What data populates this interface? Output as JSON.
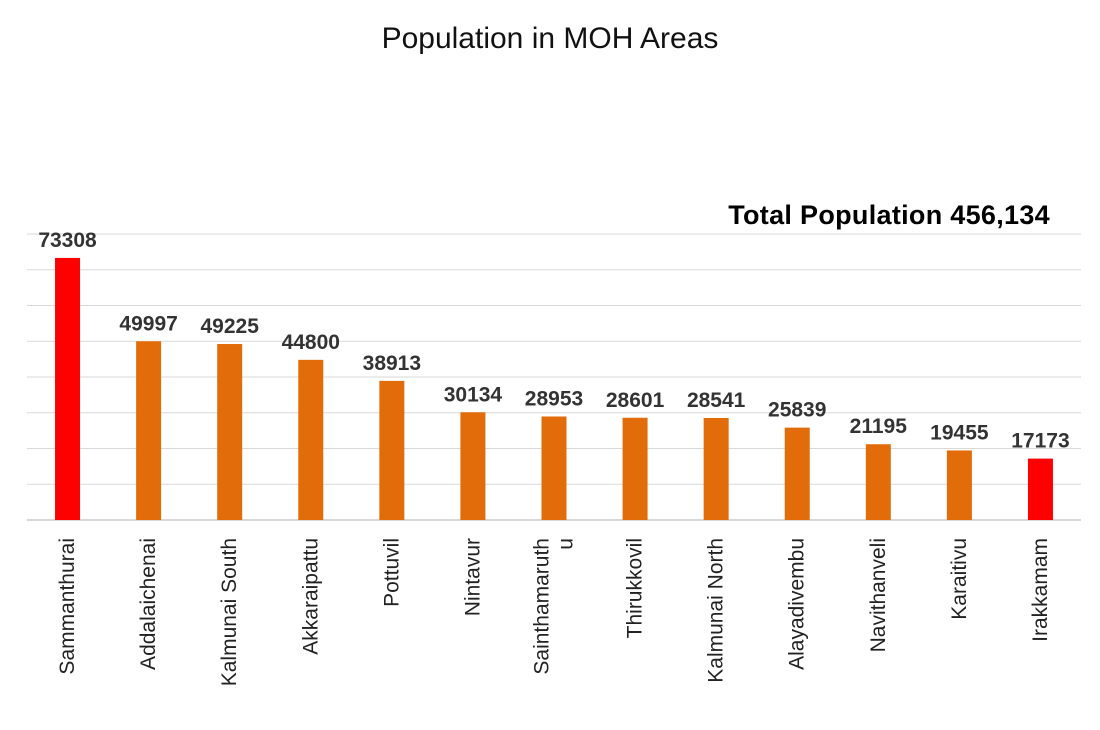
{
  "title": "Population in MOH Areas",
  "annotation": "Total Population 456,134",
  "colors": {
    "bar": "#E36C0A",
    "highlight": "#FF0000",
    "grid": "#D9D9D9",
    "axis": "#BFBFBF"
  },
  "chart_data": {
    "type": "bar",
    "title": "Population in MOH Areas",
    "categories": [
      "Sammanthurai",
      "Addalaichenai",
      "Kalmunai South",
      "Akkaraipattu",
      "Pottuvil",
      "Nintavur",
      "Sainthamaruthu",
      "Thirukkovil",
      "Kalmunai North",
      "Alayadivembu",
      "Navithanveli",
      "Karaitivu",
      "Irakkamam"
    ],
    "category_label_lines": [
      [
        "Sammanthurai"
      ],
      [
        "Addalaichenai"
      ],
      [
        "Kalmunai South"
      ],
      [
        "Akkaraipattu"
      ],
      [
        "Pottuvil"
      ],
      [
        "Nintavur"
      ],
      [
        "Sainthamaruth",
        "u"
      ],
      [
        "Thirukkovil"
      ],
      [
        "Kalmunai North"
      ],
      [
        "Alayadivembu"
      ],
      [
        "Navithanveli"
      ],
      [
        "Karaitivu"
      ],
      [
        "Irakkamam"
      ]
    ],
    "values": [
      73308,
      49997,
      49225,
      44800,
      38913,
      30134,
      28953,
      28601,
      28541,
      25839,
      21195,
      19455,
      17173
    ],
    "highlighted": [
      "Sammanthurai",
      "Irakkamam"
    ],
    "ylim": [
      0,
      80000
    ],
    "ytick_step": 10000,
    "grid": true,
    "legend": false,
    "data_labels": true,
    "annotations": [
      "Total Population 456,134"
    ]
  }
}
